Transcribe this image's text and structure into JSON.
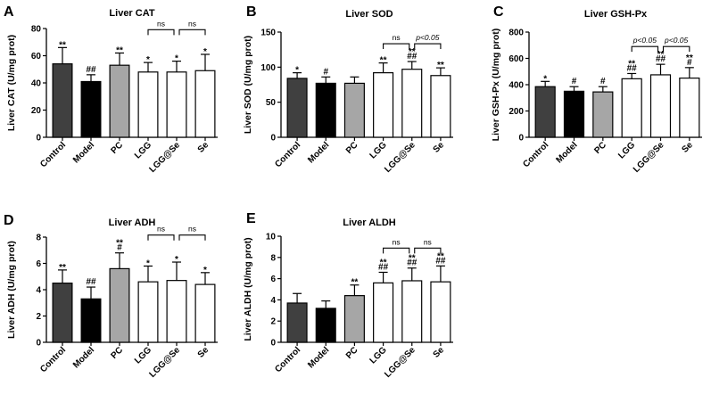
{
  "chart_data": [
    {
      "letter": "A",
      "type": "bar",
      "title": "Liver CAT",
      "ylabel": "Liver CAT (U/mg prot)",
      "ylim": [
        0,
        80
      ],
      "yticks": [
        0,
        20,
        40,
        60,
        80
      ],
      "categories": [
        "Control",
        "Model",
        "PC",
        "LGG",
        "LGG@Se",
        "Se"
      ],
      "values": [
        54,
        41,
        53,
        48,
        48,
        49
      ],
      "errors": [
        12,
        5,
        9,
        7,
        8,
        12
      ],
      "fills": [
        "#404040",
        "#000000",
        "#a6a6a6",
        "#ffffff",
        "#ffffff",
        "#ffffff"
      ],
      "sig": [
        [
          "**"
        ],
        [
          "##"
        ],
        [
          "**"
        ],
        [
          "*"
        ],
        [
          "*"
        ],
        [
          "*"
        ]
      ],
      "brackets": [
        {
          "from": 3,
          "to": 4,
          "label": "ns",
          "level": 0
        },
        {
          "from": 4,
          "to": 5,
          "label": "ns",
          "level": 0
        }
      ]
    },
    {
      "letter": "B",
      "type": "bar",
      "title": "Liver SOD",
      "ylabel": "Liver SOD (U/mg prot)",
      "ylim": [
        0,
        150
      ],
      "yticks": [
        0,
        50,
        100,
        150
      ],
      "categories": [
        "Control",
        "Model",
        "PC",
        "LGG",
        "LGG@Se",
        "Se"
      ],
      "values": [
        84,
        77,
        77,
        92,
        97,
        88
      ],
      "errors": [
        8,
        9,
        9,
        14,
        11,
        11
      ],
      "fills": [
        "#404040",
        "#000000",
        "#a6a6a6",
        "#ffffff",
        "#ffffff",
        "#ffffff"
      ],
      "sig": [
        [
          "*"
        ],
        [
          "#"
        ],
        [],
        [
          "**"
        ],
        [
          "**",
          "##"
        ],
        [
          "**"
        ]
      ],
      "brackets": [
        {
          "from": 3,
          "to": 4,
          "label": "ns",
          "level": 0
        },
        {
          "from": 4,
          "to": 5,
          "label": "p<0.05",
          "level": 0
        }
      ]
    },
    {
      "letter": "C",
      "type": "bar",
      "title": "Liver GSH-Px",
      "ylabel": "Liver GSH-Px (U/mg prot)",
      "ylim": [
        0,
        800
      ],
      "yticks": [
        0,
        200,
        400,
        600,
        800
      ],
      "categories": [
        "Control",
        "Model",
        "PC",
        "LGG",
        "LGG@Se",
        "Se"
      ],
      "values": [
        385,
        350,
        345,
        445,
        475,
        450
      ],
      "errors": [
        40,
        35,
        40,
        40,
        80,
        80
      ],
      "fills": [
        "#404040",
        "#000000",
        "#a6a6a6",
        "#ffffff",
        "#ffffff",
        "#ffffff"
      ],
      "sig": [
        [
          "*"
        ],
        [
          "#"
        ],
        [
          "#"
        ],
        [
          "**",
          "##"
        ],
        [
          "**",
          "##"
        ],
        [
          "**",
          "#"
        ]
      ],
      "brackets": [
        {
          "from": 3,
          "to": 4,
          "label": "p<0.05",
          "level": 0
        },
        {
          "from": 4,
          "to": 5,
          "label": "p<0.05",
          "level": 0
        }
      ]
    },
    {
      "letter": "D",
      "type": "bar",
      "title": "Liver ADH",
      "ylabel": "Liver ADH (U/mg prot)",
      "ylim": [
        0,
        8
      ],
      "yticks": [
        0,
        2,
        4,
        6,
        8
      ],
      "categories": [
        "Control",
        "Model",
        "PC",
        "LGG",
        "LGG@Se",
        "Se"
      ],
      "values": [
        4.5,
        3.3,
        5.6,
        4.6,
        4.7,
        4.4
      ],
      "errors": [
        1.0,
        0.9,
        1.2,
        1.2,
        1.4,
        0.9
      ],
      "fills": [
        "#404040",
        "#000000",
        "#a6a6a6",
        "#ffffff",
        "#ffffff",
        "#ffffff"
      ],
      "sig": [
        [
          "**"
        ],
        [
          "##"
        ],
        [
          "**",
          "#"
        ],
        [
          "*"
        ],
        [
          "*"
        ],
        [
          "*"
        ]
      ],
      "brackets": [
        {
          "from": 3,
          "to": 4,
          "label": "ns",
          "level": 0
        },
        {
          "from": 4,
          "to": 5,
          "label": "ns",
          "level": 0
        }
      ]
    },
    {
      "letter": "E",
      "type": "bar",
      "title": "Liver ALDH",
      "ylabel": "Liver ALDH (U/mg prot)",
      "ylim": [
        0,
        10
      ],
      "yticks": [
        0,
        2,
        4,
        6,
        8,
        10
      ],
      "categories": [
        "Control",
        "Model",
        "PC",
        "LGG",
        "LGG@Se",
        "Se"
      ],
      "values": [
        3.7,
        3.2,
        4.4,
        5.6,
        5.8,
        5.7
      ],
      "errors": [
        0.9,
        0.7,
        1.0,
        1.0,
        1.2,
        1.5
      ],
      "fills": [
        "#404040",
        "#000000",
        "#a6a6a6",
        "#ffffff",
        "#ffffff",
        "#ffffff"
      ],
      "sig": [
        [],
        [],
        [
          "**"
        ],
        [
          "**",
          "##"
        ],
        [
          "**",
          "##"
        ],
        [
          "**",
          "##"
        ]
      ],
      "brackets": [
        {
          "from": 3,
          "to": 4,
          "label": "ns",
          "level": 0
        },
        {
          "from": 4,
          "to": 5,
          "label": "ns",
          "level": 0
        }
      ]
    }
  ]
}
